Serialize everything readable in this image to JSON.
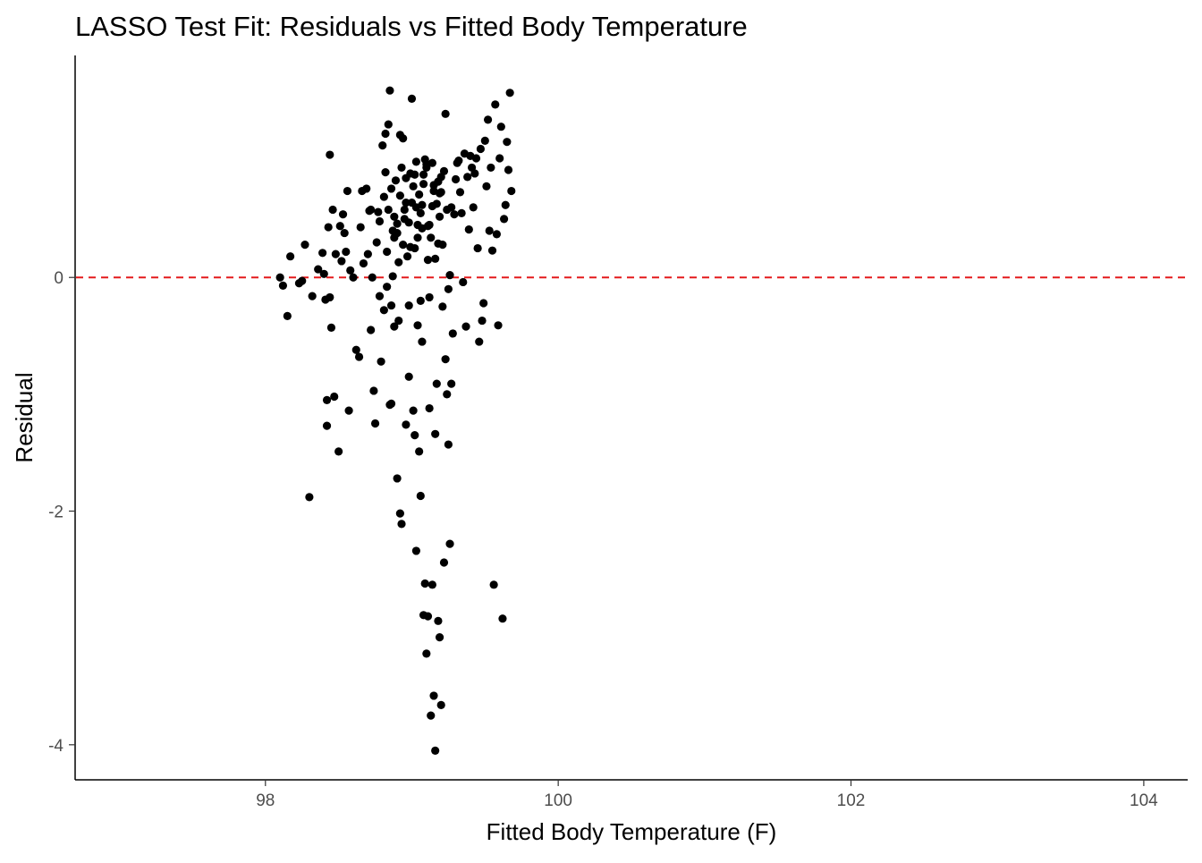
{
  "chart_data": {
    "type": "scatter",
    "title": "LASSO Test Fit: Residuals vs Fitted Body Temperature",
    "xlabel": "Fitted Body Temperature (F)",
    "ylabel": "Residual",
    "xlim": [
      96.7,
      104.3
    ],
    "ylim": [
      -4.3,
      1.9
    ],
    "x_ticks": [
      98,
      100,
      102,
      104
    ],
    "y_ticks": [
      0,
      -2,
      -4
    ],
    "x_tick_labels": [
      "98",
      "100",
      "102",
      "104"
    ],
    "y_tick_labels": [
      "0",
      "-2",
      "-4"
    ],
    "grid": false,
    "reference_line": {
      "y": 0,
      "style": "dashed",
      "color": "#e41a1c"
    },
    "point_color": "#000000",
    "points": [
      [
        98.1,
        0.0
      ],
      [
        98.12,
        -0.07
      ],
      [
        98.15,
        -0.33
      ],
      [
        98.17,
        0.18
      ],
      [
        98.23,
        -0.05
      ],
      [
        98.25,
        -0.03
      ],
      [
        98.27,
        0.28
      ],
      [
        98.3,
        -1.88
      ],
      [
        98.32,
        -0.16
      ],
      [
        98.36,
        0.07
      ],
      [
        98.39,
        0.21
      ],
      [
        98.4,
        0.03
      ],
      [
        98.41,
        -0.19
      ],
      [
        98.42,
        -1.27
      ],
      [
        98.42,
        -1.05
      ],
      [
        98.43,
        0.43
      ],
      [
        98.44,
        1.05
      ],
      [
        98.45,
        -0.43
      ],
      [
        98.46,
        0.58
      ],
      [
        98.47,
        -1.02
      ],
      [
        98.48,
        0.2
      ],
      [
        98.5,
        -1.49
      ],
      [
        98.51,
        0.44
      ],
      [
        98.52,
        0.14
      ],
      [
        98.53,
        0.54
      ],
      [
        98.54,
        0.38
      ],
      [
        98.55,
        0.22
      ],
      [
        98.56,
        0.74
      ],
      [
        98.57,
        -1.14
      ],
      [
        98.58,
        0.06
      ],
      [
        98.62,
        -0.62
      ],
      [
        98.64,
        -0.68
      ],
      [
        98.65,
        0.43
      ],
      [
        98.66,
        0.74
      ],
      [
        98.67,
        0.12
      ],
      [
        98.69,
        0.76
      ],
      [
        98.7,
        0.2
      ],
      [
        98.71,
        0.57
      ],
      [
        98.72,
        0.58
      ],
      [
        98.73,
        0.0
      ],
      [
        98.74,
        -0.97
      ],
      [
        98.75,
        -1.25
      ],
      [
        98.76,
        0.3
      ],
      [
        98.77,
        0.56
      ],
      [
        98.78,
        0.48
      ],
      [
        98.79,
        -0.72
      ],
      [
        98.8,
        1.13
      ],
      [
        98.81,
        0.69
      ],
      [
        98.82,
        1.23
      ],
      [
        98.83,
        -0.08
      ],
      [
        98.84,
        1.31
      ],
      [
        98.85,
        1.6
      ],
      [
        98.86,
        -1.08
      ],
      [
        98.87,
        0.01
      ],
      [
        98.88,
        0.34
      ],
      [
        98.89,
        0.83
      ],
      [
        98.9,
        0.46
      ],
      [
        98.91,
        -0.37
      ],
      [
        98.92,
        1.22
      ],
      [
        98.93,
        0.94
      ],
      [
        98.94,
        1.19
      ],
      [
        98.95,
        0.58
      ],
      [
        98.96,
        0.64
      ],
      [
        98.97,
        0.18
      ],
      [
        98.98,
        -0.24
      ],
      [
        98.99,
        0.89
      ],
      [
        99.0,
        1.53
      ],
      [
        99.01,
        0.78
      ],
      [
        99.02,
        0.25
      ],
      [
        99.03,
        0.99
      ],
      [
        99.04,
        0.45
      ],
      [
        99.05,
        0.71
      ],
      [
        99.06,
        -0.2
      ],
      [
        99.07,
        0.62
      ],
      [
        99.08,
        0.88
      ],
      [
        99.09,
        1.01
      ],
      [
        99.1,
        0.94
      ],
      [
        99.11,
        0.44
      ],
      [
        99.12,
        -1.12
      ],
      [
        99.13,
        0.34
      ],
      [
        99.14,
        0.98
      ],
      [
        99.15,
        0.79
      ],
      [
        99.16,
        -1.34
      ],
      [
        99.17,
        0.63
      ],
      [
        99.18,
        0.82
      ],
      [
        99.19,
        0.72
      ],
      [
        99.2,
        0.86
      ],
      [
        99.21,
        0.28
      ],
      [
        99.22,
        0.91
      ],
      [
        99.23,
        1.4
      ],
      [
        99.24,
        0.58
      ],
      [
        99.25,
        -1.43
      ],
      [
        99.26,
        0.02
      ],
      [
        99.27,
        0.6
      ],
      [
        99.28,
        -0.48
      ],
      [
        99.29,
        0.54
      ],
      [
        99.3,
        0.84
      ],
      [
        99.31,
        0.98
      ],
      [
        99.32,
        1.0
      ],
      [
        99.33,
        0.73
      ],
      [
        99.34,
        0.55
      ],
      [
        99.35,
        -0.04
      ],
      [
        99.36,
        1.06
      ],
      [
        99.37,
        -0.42
      ],
      [
        99.38,
        0.86
      ],
      [
        99.39,
        0.41
      ],
      [
        99.4,
        1.04
      ],
      [
        99.41,
        0.94
      ],
      [
        99.42,
        0.6
      ],
      [
        99.43,
        0.89
      ],
      [
        99.44,
        1.02
      ],
      [
        99.45,
        0.25
      ],
      [
        99.46,
        -0.55
      ],
      [
        99.47,
        1.1
      ],
      [
        99.48,
        -0.37
      ],
      [
        99.49,
        -0.22
      ],
      [
        99.5,
        1.17
      ],
      [
        99.51,
        0.78
      ],
      [
        99.52,
        1.35
      ],
      [
        99.53,
        0.4
      ],
      [
        99.54,
        0.94
      ],
      [
        99.55,
        0.23
      ],
      [
        99.56,
        -2.63
      ],
      [
        99.57,
        1.48
      ],
      [
        99.58,
        0.37
      ],
      [
        99.59,
        -0.41
      ],
      [
        99.6,
        1.02
      ],
      [
        99.61,
        1.29
      ],
      [
        99.62,
        -2.92
      ],
      [
        99.63,
        0.5
      ],
      [
        99.64,
        0.62
      ],
      [
        99.65,
        1.16
      ],
      [
        99.66,
        0.92
      ],
      [
        99.67,
        1.58
      ],
      [
        99.68,
        0.74
      ],
      [
        98.44,
        -0.17
      ],
      [
        98.6,
        0.0
      ],
      [
        98.72,
        -0.45
      ],
      [
        98.78,
        -0.16
      ],
      [
        98.81,
        -0.28
      ],
      [
        98.85,
        -1.09
      ],
      [
        98.86,
        -0.24
      ],
      [
        98.88,
        -0.42
      ],
      [
        98.9,
        -1.72
      ],
      [
        98.92,
        -2.02
      ],
      [
        98.93,
        -2.11
      ],
      [
        98.96,
        -1.26
      ],
      [
        98.98,
        -0.85
      ],
      [
        99.01,
        -1.14
      ],
      [
        99.02,
        -1.35
      ],
      [
        99.03,
        -2.34
      ],
      [
        99.04,
        -0.41
      ],
      [
        99.05,
        -1.49
      ],
      [
        99.06,
        -1.87
      ],
      [
        99.07,
        -0.55
      ],
      [
        99.08,
        -2.89
      ],
      [
        99.09,
        -2.62
      ],
      [
        99.1,
        -3.22
      ],
      [
        99.11,
        -2.9
      ],
      [
        99.12,
        -0.17
      ],
      [
        99.13,
        -3.75
      ],
      [
        99.14,
        -2.63
      ],
      [
        99.15,
        -3.58
      ],
      [
        99.16,
        -4.05
      ],
      [
        99.17,
        -0.91
      ],
      [
        99.18,
        -2.94
      ],
      [
        99.19,
        -3.08
      ],
      [
        99.2,
        -3.66
      ],
      [
        99.21,
        -0.25
      ],
      [
        99.22,
        -2.44
      ],
      [
        99.23,
        -0.7
      ],
      [
        99.24,
        -1.0
      ],
      [
        99.25,
        -0.1
      ],
      [
        99.26,
        -2.28
      ],
      [
        99.27,
        -0.91
      ],
      [
        98.82,
        0.9
      ],
      [
        98.84,
        0.58
      ],
      [
        98.86,
        0.76
      ],
      [
        98.88,
        0.52
      ],
      [
        98.9,
        0.38
      ],
      [
        98.92,
        0.7
      ],
      [
        98.94,
        0.28
      ],
      [
        98.96,
        0.85
      ],
      [
        98.98,
        0.47
      ],
      [
        99.0,
        0.64
      ],
      [
        99.02,
        0.88
      ],
      [
        99.04,
        0.34
      ],
      [
        99.06,
        0.55
      ],
      [
        99.08,
        0.8
      ],
      [
        99.1,
        0.97
      ],
      [
        99.12,
        0.45
      ],
      [
        99.14,
        0.61
      ],
      [
        99.16,
        0.16
      ],
      [
        99.18,
        0.29
      ],
      [
        99.2,
        0.73
      ],
      [
        98.83,
        0.22
      ],
      [
        98.87,
        0.4
      ],
      [
        98.91,
        0.13
      ],
      [
        98.95,
        0.5
      ],
      [
        98.99,
        0.26
      ],
      [
        99.03,
        0.6
      ],
      [
        99.07,
        0.42
      ],
      [
        99.11,
        0.15
      ],
      [
        99.15,
        0.74
      ],
      [
        99.19,
        0.52
      ]
    ]
  }
}
